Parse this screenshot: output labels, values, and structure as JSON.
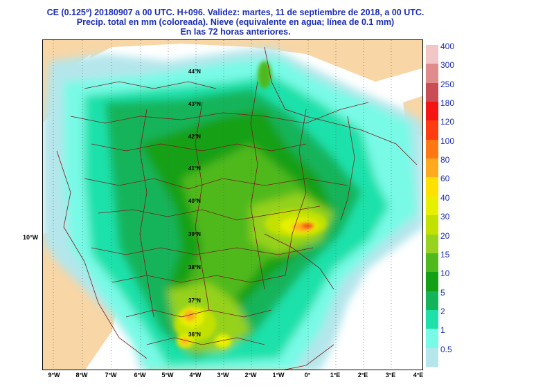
{
  "title": {
    "line1": "CE (0.125º) 20180907 a 00 UTC.  H+096. Validez: martes, 11 de septiembre de 2018,  a  00 UTC.",
    "line2": "Precip. total en mm (coloreada). Nieve (equivalente en agua; línea de 0.1 mm)",
    "line3": "En las 72 horas anteriores."
  },
  "axes": {
    "x_ticks": [
      "9°W",
      "8°W",
      "7°W",
      "6°W",
      "5°W",
      "4°W",
      "3°W",
      "2°W",
      "1°W",
      "0°",
      "1°E",
      "2°E",
      "3°E",
      "4°E"
    ],
    "y_tick": "10°W",
    "lat_labels": [
      "44°N",
      "43°N",
      "42°N",
      "41°N",
      "40°N",
      "39°N",
      "38°N",
      "37°N",
      "36°N"
    ]
  },
  "legend": {
    "labels": [
      "400",
      "300",
      "250",
      "180",
      "120",
      "100",
      "80",
      "60",
      "40",
      "30",
      "20",
      "15",
      "10",
      "5",
      "2",
      "1",
      "0.5"
    ],
    "colors": [
      "#f2c6c6",
      "#e08c8c",
      "#c84d55",
      "#f51414",
      "#ff3c0f",
      "#ff7814",
      "#ffaa1e",
      "#ffe100",
      "#e6f000",
      "#c3e100",
      "#96d21e",
      "#50b91e",
      "#14a014",
      "#14b45a",
      "#1ee1aa",
      "#78fae6",
      "#b4e6eb"
    ]
  },
  "colors": {
    "land_dry": "#f8d6a6",
    "sea": "#ffffff",
    "title": "#1a2cb8"
  }
}
